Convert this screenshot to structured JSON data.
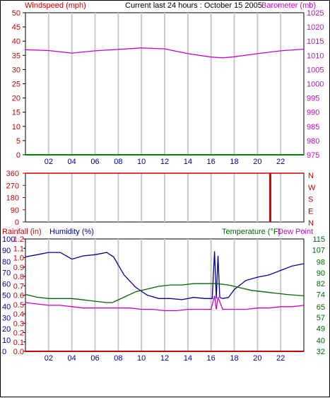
{
  "header": {
    "windspeed_label": "Windspeed (mph)",
    "title": "Current last 24 hours : October 15 2005",
    "barometer_label": "Barometer (mb)"
  },
  "colors": {
    "wind": "#008000",
    "barometer": "#cc00cc",
    "direction": "#cc0000",
    "humidity": "#000099",
    "temperature": "#006600",
    "dewpoint": "#cc00cc",
    "rainfall": "#cc0000",
    "grid": "#c8c8c8",
    "red_text": "#cc0000",
    "magenta_text": "#cc00cc",
    "blue_text": "#000099",
    "green_text": "#006600"
  },
  "chart_data": [
    {
      "type": "line",
      "name": "wind-barometer",
      "ylim_left": [
        0,
        50
      ],
      "yticks_left": [
        "0",
        "5",
        "10",
        "15",
        "20",
        "25",
        "30",
        "35",
        "40",
        "45",
        "50"
      ],
      "ylim_right": [
        975,
        1025
      ],
      "yticks_right": [
        "975",
        "980",
        "985",
        "990",
        "995",
        "1000",
        "1005",
        "1010",
        "1015",
        "1020",
        "1025"
      ],
      "xlim": [
        0,
        24
      ],
      "xticks": [
        "02",
        "04",
        "06",
        "08",
        "10",
        "12",
        "14",
        "16",
        "18",
        "20",
        "22"
      ],
      "series": [
        {
          "id": "windspeed",
          "axis": "left",
          "x": [
            0,
            24
          ],
          "y": [
            0,
            0
          ]
        },
        {
          "id": "barometer",
          "axis": "right",
          "x": [
            0,
            2,
            4,
            6,
            8,
            10,
            12,
            14,
            16,
            17,
            18,
            20,
            22,
            24
          ],
          "y": [
            1012,
            1011.7,
            1010.8,
            1011.6,
            1012.1,
            1012.6,
            1012.3,
            1010.6,
            1009.4,
            1009.1,
            1009.5,
            1010.6,
            1011.6,
            1012.2
          ]
        }
      ]
    },
    {
      "type": "line",
      "name": "wind-direction",
      "ylim_left": [
        0,
        360
      ],
      "yticks_left": [
        "0",
        "90",
        "180",
        "270",
        "360"
      ],
      "yticks_right": [
        "N",
        "E",
        "S",
        "W",
        "N"
      ],
      "xlim": [
        0,
        24
      ],
      "series": [
        {
          "id": "direction",
          "x": [
            0,
            24
          ],
          "y": [
            360,
            360
          ]
        },
        {
          "id": "direction-spike",
          "x": [
            21.1,
            21.1
          ],
          "y": [
            360,
            0
          ]
        }
      ]
    },
    {
      "type": "line",
      "name": "rain-humidity-temp",
      "label_rainfall": "Rainfall (in)",
      "label_humidity": "Humidity (%)",
      "label_temperature": "Temperature (°F)",
      "label_dewpoint": "Dew Point",
      "ylim_rainfall": [
        0,
        1.2
      ],
      "yticks_rainfall": [
        "0.0",
        "0.1",
        "0.2",
        "0.3",
        "0.4",
        "0.5",
        "0.6",
        "0.7",
        "0.8",
        "0.9",
        "1.0",
        "1.1",
        "1.2"
      ],
      "ylim_humidity": [
        0,
        100
      ],
      "yticks_humidity": [
        "0",
        "10",
        "20",
        "30",
        "40",
        "50",
        "60",
        "70",
        "80",
        "90",
        "100"
      ],
      "ylim_temperature": [
        32,
        115
      ],
      "yticks_temperature": [
        "32",
        "40",
        "49",
        "57",
        "65",
        "74",
        "82",
        "90",
        "98",
        "107",
        "115"
      ],
      "xlim": [
        0,
        24
      ],
      "xticks": [
        "02",
        "04",
        "06",
        "08",
        "10",
        "12",
        "14",
        "16",
        "18",
        "20",
        "22"
      ],
      "series": [
        {
          "id": "humidity",
          "axis": "humidity",
          "x": [
            0,
            1,
            2,
            3,
            4,
            5,
            6,
            7,
            7.6,
            8.5,
            9.5,
            10.5,
            11.5,
            12.5,
            13.5,
            14.5,
            15.5,
            16.1,
            16.3,
            16.45,
            16.6,
            16.75,
            17,
            17.5,
            18,
            19,
            20,
            21,
            22,
            23,
            24
          ],
          "y": [
            84,
            86,
            88,
            88,
            82,
            85,
            86,
            88,
            84,
            68,
            57,
            50,
            47,
            47,
            46,
            48,
            47,
            47,
            89,
            47,
            85,
            48,
            47,
            48,
            55,
            63,
            66,
            68,
            72,
            76,
            78
          ]
        },
        {
          "id": "temperature",
          "axis": "temperature",
          "x": [
            0,
            1,
            2,
            3,
            4,
            5,
            6,
            7,
            7.5,
            8.5,
            9.5,
            10.5,
            11.5,
            12.5,
            13.5,
            14.5,
            15.5,
            16.5,
            17.5,
            18.5,
            19.5,
            20.5,
            21.5,
            22.5,
            24
          ],
          "y": [
            74,
            72,
            71,
            71,
            71,
            70,
            69,
            68,
            68,
            72,
            76,
            78,
            80,
            81,
            81,
            82,
            82,
            82,
            81,
            79,
            77,
            76,
            75,
            74,
            73
          ]
        },
        {
          "id": "dewpoint",
          "axis": "temperature",
          "x": [
            0,
            1,
            2,
            3,
            4,
            5,
            6,
            7,
            8,
            9,
            10,
            11,
            12,
            13,
            14,
            15,
            16,
            16.3,
            16.45,
            16.6,
            17,
            18,
            19,
            20,
            21,
            22,
            23,
            24
          ],
          "y": [
            68,
            67,
            66,
            66,
            65,
            64,
            64,
            64,
            64,
            64,
            63,
            63,
            62,
            62,
            63,
            63,
            63,
            73,
            63,
            72,
            63,
            63,
            63,
            64,
            64,
            65,
            65,
            66
          ]
        },
        {
          "id": "rainfall",
          "axis": "rainfall",
          "x": [
            0,
            24
          ],
          "y": [
            0,
            0
          ]
        }
      ]
    }
  ]
}
